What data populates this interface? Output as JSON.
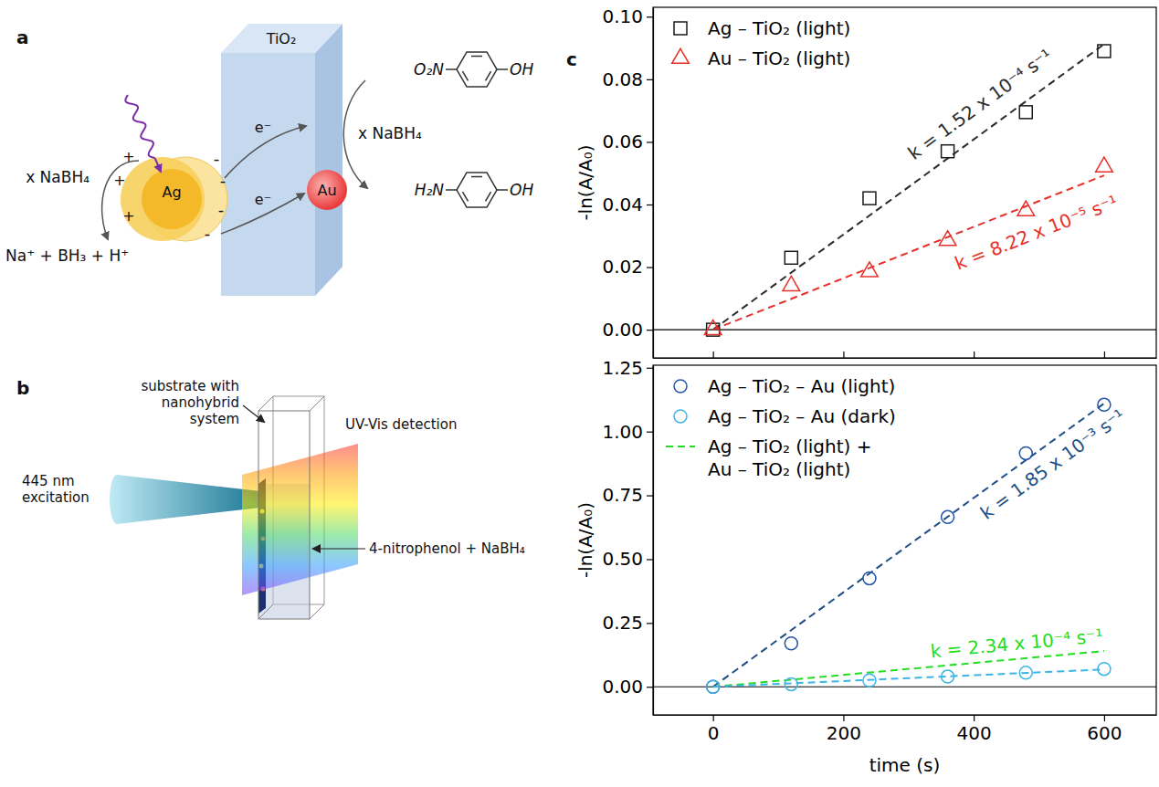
{
  "diagram_a": {
    "panel_label": "a",
    "tio2": "TiO₂",
    "ag": "Ag",
    "au": "Au",
    "electrons": [
      "e⁻",
      "e⁻"
    ],
    "plus": "+",
    "minus": "-",
    "reductant_left": "x NaBH₄",
    "byproducts": "Na⁺ + BH₃ + H⁺",
    "reductant_right": "x NaBH₄",
    "reactant": {
      "left": "O₂N",
      "right": "OH"
    },
    "product": {
      "left": "H₂N",
      "right": "OH"
    }
  },
  "diagram_b": {
    "panel_label": "b",
    "substrate": "substrate with nanohybrid system",
    "excitation": "445 nm excitation",
    "detection": "UV-Vis detection",
    "solution": "4-nitrophenol + NaBH₄"
  },
  "panel_c": {
    "panel_label": "c"
  },
  "chart_data": [
    {
      "type": "scatter",
      "xlim": [
        -92,
        680
      ],
      "ylim": [
        -0.009,
        0.103
      ],
      "xticks": [
        0,
        200,
        400,
        600
      ],
      "yticks": [
        {
          "value": 0,
          "label": "0.00"
        },
        {
          "value": 0.02,
          "label": "0.02"
        },
        {
          "value": 0.04,
          "label": "0.04"
        },
        {
          "value": 0.06,
          "label": "0.06"
        },
        {
          "value": 0.08,
          "label": "0.08"
        },
        {
          "value": 0.1,
          "label": "0.10"
        }
      ],
      "y_label": "-ln(A/A₀)",
      "tick_labels": "y",
      "legend": "upper left",
      "series": [
        {
          "name": "Ag – TiO₂ (light)",
          "type": "scatter",
          "marker": "square",
          "color": "#1a1a1a",
          "x": [
            0,
            120,
            240,
            360,
            480,
            600
          ],
          "values": [
            0,
            0.023,
            0.042,
            0.057,
            0.0695,
            0.089
          ]
        },
        {
          "name": "Au – TiO₂ (light)",
          "type": "scatter",
          "marker": "triangle",
          "color": "#e8302a",
          "x": [
            0,
            120,
            240,
            360,
            480,
            600
          ],
          "values": [
            0,
            0.014,
            0.0185,
            0.0285,
            0.038,
            0.052
          ]
        },
        {
          "type": "line",
          "line_style": "dashed",
          "color": "#2b2b2b",
          "x": [
            0,
            600
          ],
          "values": [
            0,
            0.0912
          ],
          "annotation": "k = 1.52 x 10⁻⁴ s⁻¹"
        },
        {
          "type": "line",
          "line_style": "dashed",
          "color": "#e8302a",
          "x": [
            0,
            600
          ],
          "values": [
            0,
            0.0493
          ],
          "annotation": "k = 8.22 x 10⁻⁵ s⁻¹"
        }
      ]
    },
    {
      "type": "scatter",
      "xlim": [
        -92,
        680
      ],
      "ylim": [
        -0.11,
        1.26
      ],
      "xticks": [
        0,
        200,
        400,
        600
      ],
      "yticks": [
        {
          "value": 0,
          "label": "0.00"
        },
        {
          "value": 0.25,
          "label": "0.25"
        },
        {
          "value": 0.5,
          "label": "0.50"
        },
        {
          "value": 0.75,
          "label": "0.75"
        },
        {
          "value": 1,
          "label": "1.00"
        },
        {
          "value": 1.25,
          "label": "1.25"
        }
      ],
      "x_label": "time (s)",
      "y_label": "-ln(A/A₀)",
      "legend": "upper left",
      "series": [
        {
          "name": "Ag – TiO₂ – Au (light)",
          "type": "scatter",
          "marker": "circle",
          "color": "#2454a6",
          "x": [
            0,
            120,
            240,
            360,
            480,
            600
          ],
          "values": [
            0,
            0.17,
            0.425,
            0.665,
            0.915,
            1.105
          ]
        },
        {
          "name": "Ag – TiO₂ – Au (dark)",
          "type": "scatter",
          "marker": "circle",
          "color": "#3cb4e6",
          "x": [
            0,
            120,
            240,
            360,
            480,
            600
          ],
          "values": [
            0,
            0.01,
            0.025,
            0.04,
            0.055,
            0.07
          ]
        },
        {
          "name": "Ag – TiO₂ (light) + Au – TiO₂ (light)",
          "type": "line",
          "line_style": "dashed",
          "color": "#22dd22",
          "x": [
            0,
            600
          ],
          "values": [
            0,
            0.14
          ],
          "annotation": "k = 2.34 x 10⁻⁴ s⁻¹"
        },
        {
          "type": "line",
          "line_style": "dashed",
          "color": "#1d4f86",
          "x": [
            0,
            600
          ],
          "values": [
            0,
            1.11
          ],
          "annotation": "k = 1.85 x 10⁻³ s⁻¹"
        },
        {
          "type": "line",
          "line_style": "dashed",
          "color": "#3cb4e6",
          "x": [
            0,
            600
          ],
          "values": [
            0,
            0.068
          ]
        }
      ]
    }
  ]
}
